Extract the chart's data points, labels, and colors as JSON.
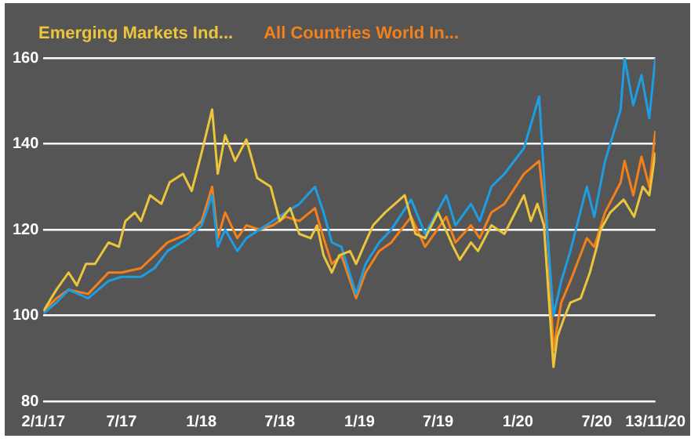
{
  "chart_data": {
    "type": "line",
    "legend": "top",
    "grid": "y",
    "marker": "none",
    "line_style": "solid",
    "ylim": [
      80,
      160
    ],
    "yticks": [
      80,
      100,
      120,
      140,
      160
    ],
    "xlim": [
      "2017-01-02",
      "2020-11-13"
    ],
    "xticks": [
      {
        "value": "2017-01-02",
        "label": "2/1/17"
      },
      {
        "value": "2017-07-01",
        "label": "7/17"
      },
      {
        "value": "2018-01-01",
        "label": "1/18"
      },
      {
        "value": "2018-07-01",
        "label": "7/18"
      },
      {
        "value": "2019-01-01",
        "label": "1/19"
      },
      {
        "value": "2019-07-01",
        "label": "7/19"
      },
      {
        "value": "2020-01-01",
        "label": "1/20"
      },
      {
        "value": "2020-07-01",
        "label": "7/20"
      },
      {
        "value": "2020-11-13",
        "label": "13/11/20"
      }
    ],
    "series": [
      {
        "name": "Emerging Markets Ind...",
        "color": "#ecc53c",
        "x": [
          "2017-01-02",
          "2017-02-01",
          "2017-03-01",
          "2017-03-20",
          "2017-04-10",
          "2017-05-01",
          "2017-06-01",
          "2017-06-25",
          "2017-07-10",
          "2017-08-01",
          "2017-08-15",
          "2017-09-05",
          "2017-10-01",
          "2017-10-20",
          "2017-11-20",
          "2017-12-10",
          "2018-01-02",
          "2018-01-26",
          "2018-02-08",
          "2018-02-25",
          "2018-03-20",
          "2018-04-15",
          "2018-05-10",
          "2018-06-10",
          "2018-07-01",
          "2018-07-25",
          "2018-08-15",
          "2018-09-10",
          "2018-09-25",
          "2018-10-10",
          "2018-10-29",
          "2018-11-15",
          "2018-12-10",
          "2018-12-24",
          "2019-01-10",
          "2019-02-01",
          "2019-03-01",
          "2019-04-15",
          "2019-05-10",
          "2019-06-01",
          "2019-07-01",
          "2019-08-05",
          "2019-08-20",
          "2019-09-15",
          "2019-10-01",
          "2019-11-01",
          "2019-12-01",
          "2020-01-15",
          "2020-01-31",
          "2020-02-15",
          "2020-03-01",
          "2020-03-23",
          "2020-04-01",
          "2020-04-15",
          "2020-05-01",
          "2020-05-25",
          "2020-06-15",
          "2020-07-01",
          "2020-07-10",
          "2020-08-01",
          "2020-09-01",
          "2020-09-25",
          "2020-10-15",
          "2020-10-30",
          "2020-11-13"
        ],
        "values": [
          101,
          106,
          110,
          107,
          112,
          112,
          117,
          116,
          122,
          124,
          122,
          128,
          126,
          131,
          133,
          129,
          138,
          148,
          133,
          142,
          136,
          141,
          132,
          130,
          122,
          125,
          119,
          118,
          121,
          114,
          110,
          114,
          115,
          112,
          116,
          121,
          124,
          128,
          119,
          118,
          124,
          116,
          113,
          117,
          115,
          121,
          119,
          128,
          122,
          126,
          121,
          88,
          95,
          99,
          103,
          104,
          110,
          116,
          120,
          124,
          127,
          123,
          130,
          128,
          138
        ]
      },
      {
        "color": "#1f9de3",
        "x": [
          "2017-01-02",
          "2017-02-01",
          "2017-03-01",
          "2017-04-15",
          "2017-06-01",
          "2017-07-01",
          "2017-08-15",
          "2017-09-15",
          "2017-10-15",
          "2017-12-01",
          "2018-01-02",
          "2018-01-26",
          "2018-02-08",
          "2018-02-25",
          "2018-03-25",
          "2018-04-15",
          "2018-05-15",
          "2018-06-15",
          "2018-07-15",
          "2018-08-15",
          "2018-09-20",
          "2018-10-10",
          "2018-10-29",
          "2018-11-20",
          "2018-12-24",
          "2019-01-15",
          "2019-02-15",
          "2019-03-15",
          "2019-04-30",
          "2019-06-01",
          "2019-07-20",
          "2019-08-10",
          "2019-09-15",
          "2019-10-05",
          "2019-11-01",
          "2019-12-01",
          "2020-01-15",
          "2020-02-19",
          "2020-03-10",
          "2020-03-23",
          "2020-04-10",
          "2020-05-01",
          "2020-06-08",
          "2020-06-25",
          "2020-07-20",
          "2020-08-25",
          "2020-09-03",
          "2020-09-23",
          "2020-10-12",
          "2020-10-30",
          "2020-11-13"
        ],
        "values": [
          100.5,
          103,
          106,
          104,
          108,
          109,
          109,
          111,
          115,
          118,
          121,
          128,
          116,
          120,
          115,
          118,
          120,
          122,
          124,
          126,
          130,
          124,
          117,
          116,
          105,
          112,
          117,
          120,
          127,
          119,
          128,
          121,
          126,
          122,
          130,
          133,
          139,
          151,
          118,
          100,
          108,
          115,
          130,
          123,
          136,
          148,
          160,
          149,
          156,
          146,
          160
        ]
      },
      {
        "name": "All Countries World In...",
        "color": "#f4801a",
        "x": [
          "2017-01-02",
          "2017-02-01",
          "2017-03-01",
          "2017-04-15",
          "2017-06-01",
          "2017-07-01",
          "2017-08-15",
          "2017-09-15",
          "2017-10-15",
          "2017-12-01",
          "2018-01-02",
          "2018-01-26",
          "2018-02-08",
          "2018-02-25",
          "2018-03-25",
          "2018-04-15",
          "2018-05-15",
          "2018-06-15",
          "2018-07-15",
          "2018-08-15",
          "2018-09-20",
          "2018-10-10",
          "2018-10-29",
          "2018-11-20",
          "2018-12-24",
          "2019-01-15",
          "2019-02-15",
          "2019-03-15",
          "2019-04-30",
          "2019-06-01",
          "2019-07-20",
          "2019-08-10",
          "2019-09-15",
          "2019-10-05",
          "2019-11-01",
          "2019-12-01",
          "2020-01-15",
          "2020-02-19",
          "2020-03-10",
          "2020-03-23",
          "2020-04-10",
          "2020-05-01",
          "2020-06-08",
          "2020-06-25",
          "2020-07-20",
          "2020-08-25",
          "2020-09-03",
          "2020-09-23",
          "2020-10-12",
          "2020-10-30",
          "2020-11-13"
        ],
        "values": [
          101,
          104,
          106,
          105,
          110,
          110,
          111,
          114,
          117,
          119,
          122,
          130,
          118,
          124,
          118,
          121,
          120,
          121,
          123,
          122,
          125,
          118,
          112,
          114,
          104,
          110,
          115,
          117,
          123,
          116,
          123,
          117,
          121,
          118,
          124,
          126,
          133,
          136,
          118,
          92,
          103,
          108,
          118,
          116,
          124,
          131,
          136,
          128,
          137,
          130,
          143
        ]
      }
    ]
  }
}
